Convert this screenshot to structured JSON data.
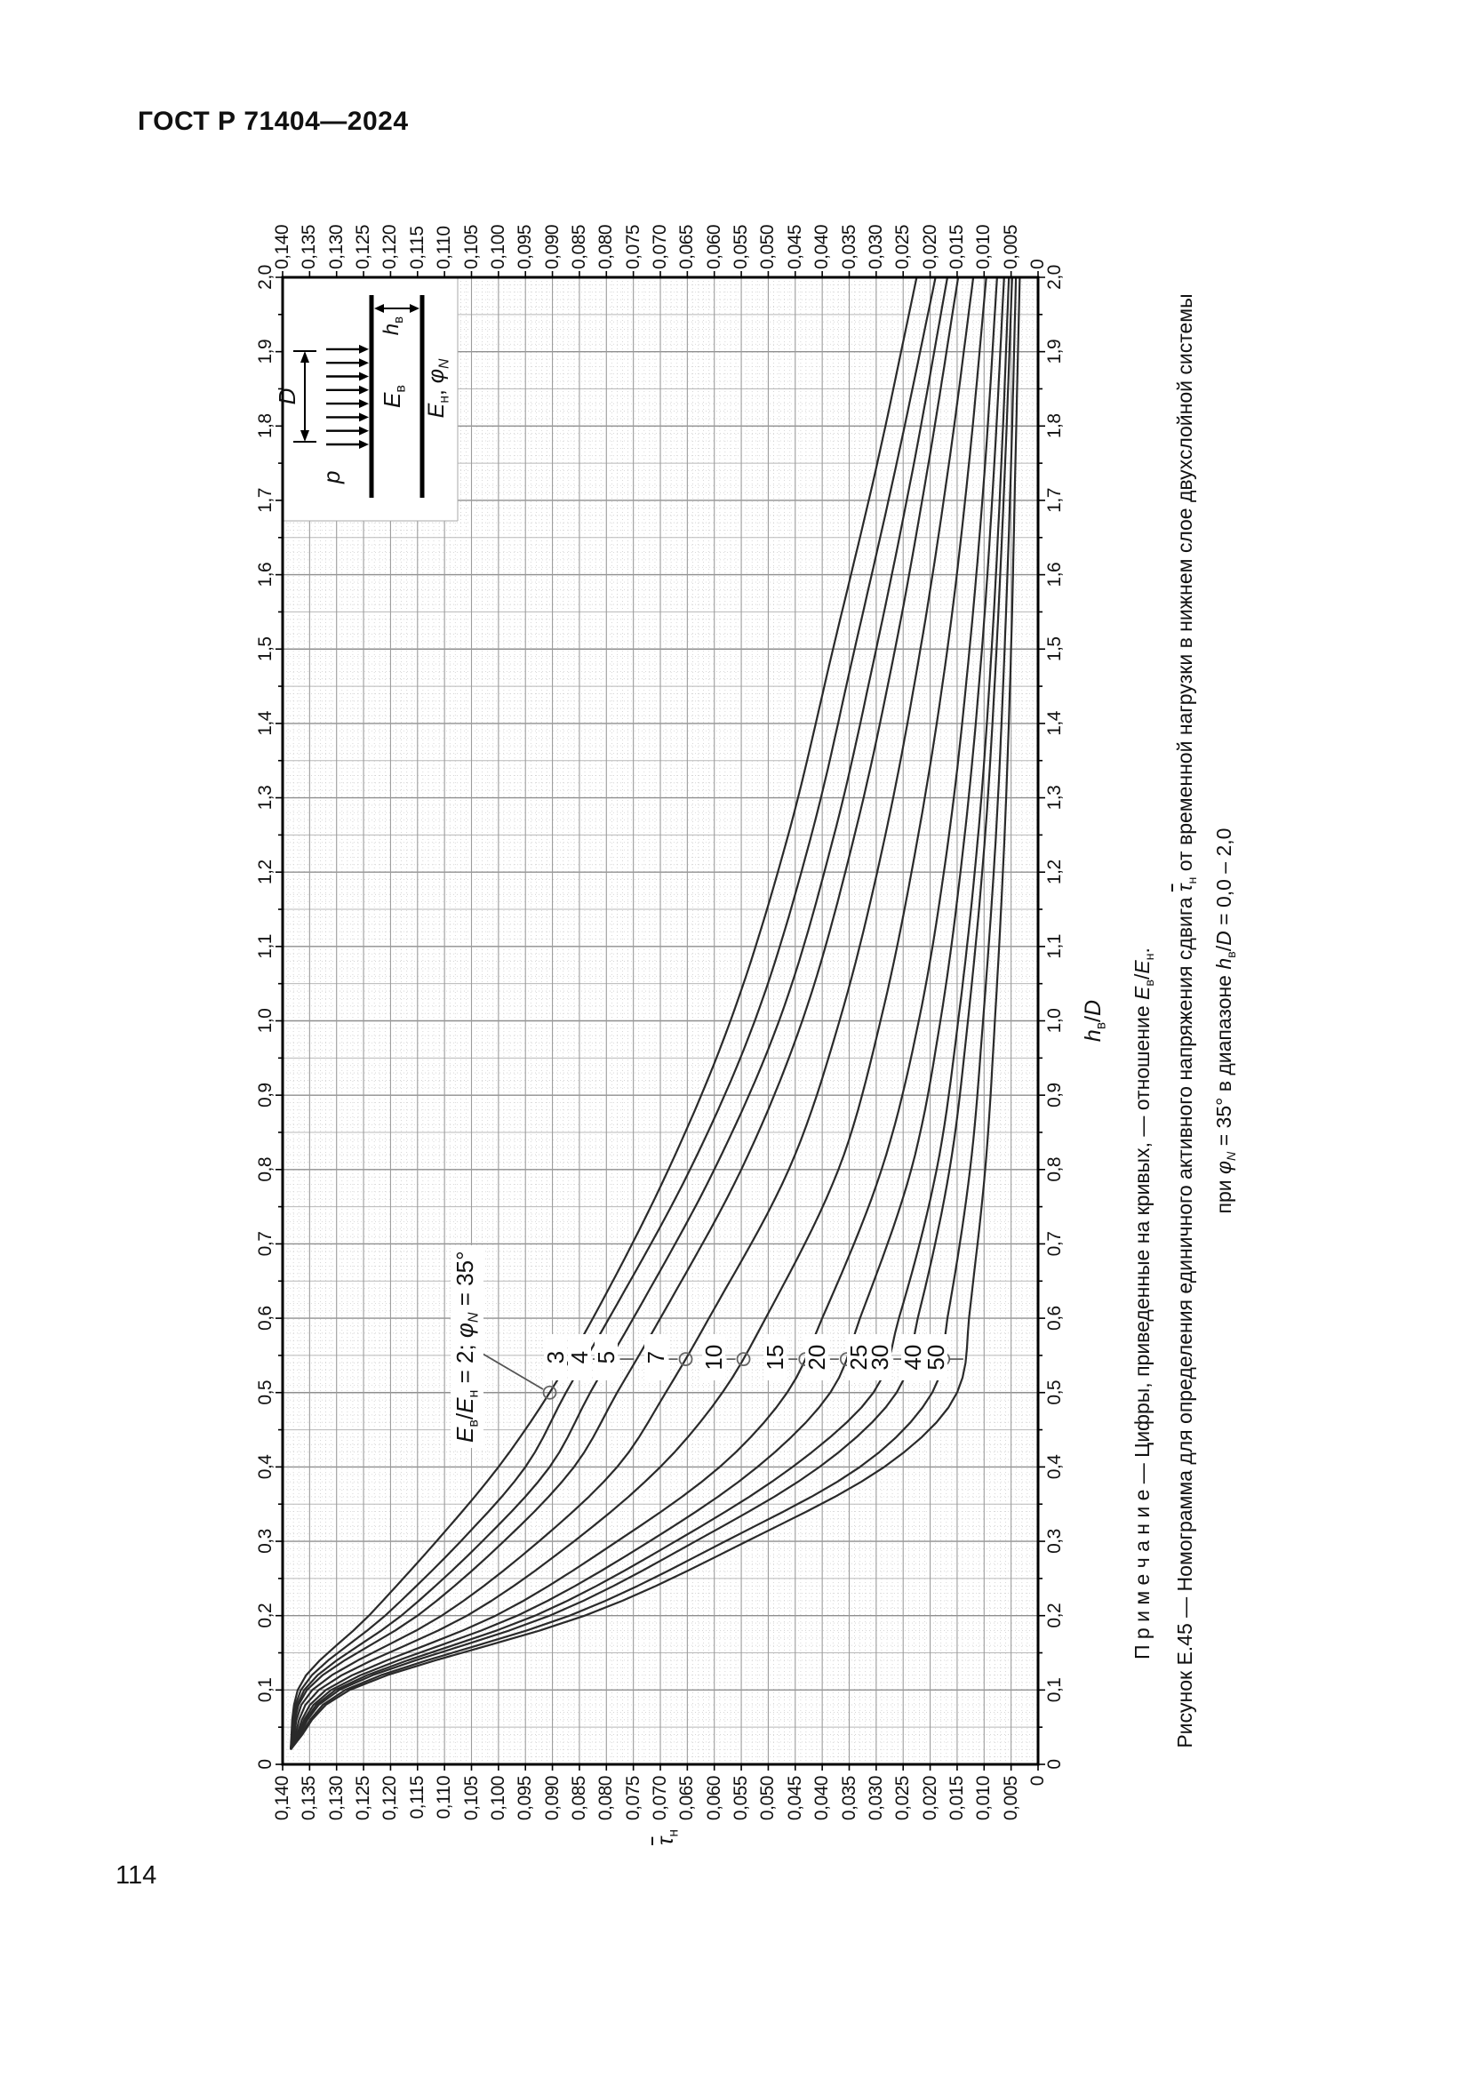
{
  "page": {
    "header": "ГОСТ Р 71404—2024",
    "page_number": "114"
  },
  "chart_data": {
    "type": "line",
    "xlabel_runs": [
      {
        "t": "h",
        "i": 1
      },
      {
        "t": "в",
        "sub": 1
      },
      {
        "t": "/"
      },
      {
        "t": "D",
        "i": 1
      }
    ],
    "ylabel_runs": [
      {
        "t": "τ",
        "i": 1,
        "ol": 1
      },
      {
        "t": "н",
        "sub": 1
      }
    ],
    "xlim": [
      0,
      2.0
    ],
    "ylim": [
      0,
      0.14
    ],
    "x_step_major": 0.1,
    "y_step_major": 0.005,
    "grid": "on",
    "x_ticks": [
      "0",
      "0,1",
      "0,2",
      "0,3",
      "0,4",
      "0,5",
      "0,6",
      "0,7",
      "0,8",
      "0,9",
      "1,0",
      "1,1",
      "1,2",
      "1,3",
      "1,4",
      "1,5",
      "1,6",
      "1,7",
      "1,8",
      "1,9",
      "2,0"
    ],
    "y_ticks": [
      "0,140",
      "0,135",
      "0,130",
      "0,125",
      "0,120",
      "0,115",
      "0,110",
      "0,105",
      "0,100",
      "0,095",
      "0,090",
      "0,085",
      "0,080",
      "0,075",
      "0,070",
      "0,065",
      "0,060",
      "0,055",
      "0,050",
      "0,045",
      "0,040",
      "0,035",
      "0,030",
      "0,025",
      "0,020",
      "0,015",
      "0,010",
      "0,005",
      "0"
    ],
    "note_runs": [
      {
        "t": "П р и м е ч а н и е — Цифры, приведенные на кривых, — отношение "
      },
      {
        "t": "E",
        "i": 1
      },
      {
        "t": "в",
        "sub": 1
      },
      {
        "t": "/"
      },
      {
        "t": "E",
        "i": 1
      },
      {
        "t": "н",
        "sub": 1
      },
      {
        "t": "."
      }
    ],
    "caption_runs_1": [
      {
        "t": "Рисунок Е.45 — Номограмма для определения единичного активного напряжения сдвига "
      },
      {
        "t": "τ",
        "i": 1,
        "ol": 1
      },
      {
        "t": "н",
        "sub": 1
      },
      {
        "t": " от временной нагрузки в нижнем слое двухслойной системы"
      }
    ],
    "caption_runs_2": [
      {
        "t": "при "
      },
      {
        "t": "φ",
        "i": 1
      },
      {
        "t": "N",
        "sub": 1,
        "i": 1
      },
      {
        "t": " = 35° в диапазоне "
      },
      {
        "t": "h",
        "i": 1
      },
      {
        "t": "в",
        "sub": 1
      },
      {
        "t": "/"
      },
      {
        "t": "D",
        "i": 1
      },
      {
        "t": " = 0,0 – 2,0"
      }
    ],
    "annotation": {
      "runs": [
        {
          "t": "E",
          "i": 1
        },
        {
          "t": "в",
          "sub": 1
        },
        {
          "t": "/"
        },
        {
          "t": "E",
          "i": 1
        },
        {
          "t": "н",
          "sub": 1
        },
        {
          "t": " = 2; "
        },
        {
          "t": "φ",
          "i": 1
        },
        {
          "t": "N",
          "sub": 1,
          "i": 1
        },
        {
          "t": " = 35°"
        }
      ],
      "points_to_ratio": "2"
    },
    "curve_label_h": 0.545,
    "series": [
      {
        "ratio": "2",
        "labeled": false,
        "marker": "circle",
        "marker_h": 0.5,
        "points": [
          [
            0.02,
            0.1385
          ],
          [
            0.1,
            0.1372
          ],
          [
            0.2,
            0.124
          ],
          [
            0.3,
            0.1115
          ],
          [
            0.4,
            0.1
          ],
          [
            0.5,
            0.0905
          ],
          [
            0.6,
            0.0825
          ],
          [
            0.8,
            0.0685
          ],
          [
            1,
            0.057
          ],
          [
            1.25,
            0.0463
          ],
          [
            1.5,
            0.038
          ],
          [
            1.75,
            0.0298
          ],
          [
            2,
            0.0225
          ]
        ]
      },
      {
        "ratio": "3",
        "labeled": true,
        "marker": "dash",
        "points": [
          [
            0.02,
            0.1385
          ],
          [
            0.1,
            0.1366
          ],
          [
            0.2,
            0.121
          ],
          [
            0.3,
            0.107
          ],
          [
            0.4,
            0.095
          ],
          [
            0.5,
            0.0875
          ],
          [
            0.6,
            0.0795
          ],
          [
            0.8,
            0.0645
          ],
          [
            1,
            0.0525
          ],
          [
            1.25,
            0.042
          ],
          [
            1.5,
            0.034
          ],
          [
            1.75,
            0.0262
          ],
          [
            2,
            0.019
          ]
        ]
      },
      {
        "ratio": "4",
        "labeled": true,
        "marker": "dash",
        "points": [
          [
            0.02,
            0.1385
          ],
          [
            0.1,
            0.136
          ],
          [
            0.2,
            0.118
          ],
          [
            0.3,
            0.103
          ],
          [
            0.4,
            0.0905
          ],
          [
            0.5,
            0.083
          ],
          [
            0.6,
            0.075
          ],
          [
            0.8,
            0.06
          ],
          [
            1,
            0.048
          ],
          [
            1.25,
            0.0378
          ],
          [
            1.5,
            0.03
          ],
          [
            1.75,
            0.023
          ],
          [
            2,
            0.0168
          ]
        ]
      },
      {
        "ratio": "5",
        "labeled": true,
        "marker": "dash",
        "points": [
          [
            0.02,
            0.1385
          ],
          [
            0.1,
            0.1355
          ],
          [
            0.2,
            0.115
          ],
          [
            0.3,
            0.099
          ],
          [
            0.4,
            0.086
          ],
          [
            0.5,
            0.078
          ],
          [
            0.6,
            0.07
          ],
          [
            0.8,
            0.055
          ],
          [
            1,
            0.0437
          ],
          [
            1.25,
            0.034
          ],
          [
            1.5,
            0.0265
          ],
          [
            1.75,
            0.0203
          ],
          [
            2,
            0.0148
          ]
        ]
      },
      {
        "ratio": "7",
        "labeled": true,
        "marker": "circle",
        "points": [
          [
            0.02,
            0.1385
          ],
          [
            0.1,
            0.1345
          ],
          [
            0.2,
            0.1105
          ],
          [
            0.3,
            0.0925
          ],
          [
            0.4,
            0.078
          ],
          [
            0.5,
            0.069
          ],
          [
            0.6,
            0.061
          ],
          [
            0.8,
            0.0462
          ],
          [
            1,
            0.0368
          ],
          [
            1.25,
            0.0283
          ],
          [
            1.5,
            0.0218
          ],
          [
            1.75,
            0.0165
          ],
          [
            2,
            0.012
          ]
        ]
      },
      {
        "ratio": "10",
        "labeled": true,
        "marker": "circle",
        "points": [
          [
            0.02,
            0.1385
          ],
          [
            0.1,
            0.1333
          ],
          [
            0.2,
            0.1058
          ],
          [
            0.3,
            0.086
          ],
          [
            0.4,
            0.07
          ],
          [
            0.5,
            0.0585
          ],
          [
            0.6,
            0.0505
          ],
          [
            0.8,
            0.037
          ],
          [
            1,
            0.0292
          ],
          [
            1.25,
            0.0222
          ],
          [
            1.5,
            0.0168
          ],
          [
            1.75,
            0.0128
          ],
          [
            2,
            0.0096
          ]
        ]
      },
      {
        "ratio": "15",
        "labeled": true,
        "marker": "circle",
        "points": [
          [
            0.02,
            0.1385
          ],
          [
            0.1,
            0.132
          ],
          [
            0.2,
            0.1005
          ],
          [
            0.3,
            0.078
          ],
          [
            0.4,
            0.059
          ],
          [
            0.5,
            0.0465
          ],
          [
            0.6,
            0.04
          ],
          [
            0.8,
            0.029
          ],
          [
            1,
            0.0221
          ],
          [
            1.25,
            0.0165
          ],
          [
            1.5,
            0.0127
          ],
          [
            1.75,
            0.0098
          ],
          [
            2,
            0.0076
          ]
        ]
      },
      {
        "ratio": "20",
        "labeled": true,
        "marker": "circle",
        "points": [
          [
            0.02,
            0.1385
          ],
          [
            0.1,
            0.131
          ],
          [
            0.2,
            0.0965
          ],
          [
            0.3,
            0.072
          ],
          [
            0.4,
            0.052
          ],
          [
            0.5,
            0.0385
          ],
          [
            0.6,
            0.033
          ],
          [
            0.8,
            0.0235
          ],
          [
            1,
            0.0181
          ],
          [
            1.25,
            0.0136
          ],
          [
            1.5,
            0.0104
          ],
          [
            1.75,
            0.0081
          ],
          [
            2,
            0.0063
          ]
        ]
      },
      {
        "ratio": "25",
        "labeled": true,
        "marker": "dash",
        "points": [
          [
            0.02,
            0.1385
          ],
          [
            0.1,
            0.1302
          ],
          [
            0.2,
            0.0932
          ],
          [
            0.3,
            0.0672
          ],
          [
            0.4,
            0.0455
          ],
          [
            0.5,
            0.0305
          ],
          [
            0.6,
            0.0258
          ],
          [
            0.8,
            0.0188
          ],
          [
            1,
            0.0148
          ],
          [
            1.25,
            0.0111
          ],
          [
            1.5,
            0.0086
          ],
          [
            1.75,
            0.0068
          ],
          [
            2,
            0.0054
          ]
        ]
      },
      {
        "ratio": "30",
        "labeled": true,
        "marker": "dash",
        "points": [
          [
            0.02,
            0.1385
          ],
          [
            0.1,
            0.1295
          ],
          [
            0.2,
            0.0905
          ],
          [
            0.3,
            0.0635
          ],
          [
            0.4,
            0.0405
          ],
          [
            0.5,
            0.0262
          ],
          [
            0.6,
            0.0223
          ],
          [
            0.8,
            0.0164
          ],
          [
            1,
            0.013
          ],
          [
            1.25,
            0.0098
          ],
          [
            1.5,
            0.0077
          ],
          [
            1.75,
            0.0061
          ],
          [
            2,
            0.0048
          ]
        ]
      },
      {
        "ratio": "40",
        "labeled": true,
        "marker": "circle",
        "points": [
          [
            0.02,
            0.1385
          ],
          [
            0.1,
            0.1284
          ],
          [
            0.2,
            0.0868
          ],
          [
            0.3,
            0.058
          ],
          [
            0.4,
            0.033
          ],
          [
            0.5,
            0.0196
          ],
          [
            0.6,
            0.0168
          ],
          [
            0.8,
            0.0126
          ],
          [
            1,
            0.0102
          ],
          [
            1.25,
            0.0078
          ],
          [
            1.5,
            0.0062
          ],
          [
            1.75,
            0.005
          ],
          [
            2,
            0.0041
          ]
        ]
      },
      {
        "ratio": "50",
        "labeled": true,
        "marker": "dash",
        "points": [
          [
            0.02,
            0.1385
          ],
          [
            0.1,
            0.1276
          ],
          [
            0.2,
            0.084
          ],
          [
            0.3,
            0.054
          ],
          [
            0.4,
            0.0285
          ],
          [
            0.5,
            0.015
          ],
          [
            0.6,
            0.0128
          ],
          [
            0.8,
            0.0098
          ],
          [
            1,
            0.008
          ],
          [
            1.25,
            0.0062
          ],
          [
            1.5,
            0.005
          ],
          [
            1.75,
            0.0042
          ],
          [
            2,
            0.0034
          ]
        ]
      }
    ],
    "inset": {
      "D_runs": [
        {
          "t": "D",
          "i": 1
        }
      ],
      "p_runs": [
        {
          "t": "p",
          "i": 1
        }
      ],
      "Eb_runs": [
        {
          "t": "E",
          "i": 1
        },
        {
          "t": "в",
          "sub": 1
        }
      ],
      "En_runs": [
        {
          "t": "E",
          "i": 1
        },
        {
          "t": "н",
          "sub": 1
        },
        {
          "t": ", "
        },
        {
          "t": "φ",
          "i": 1
        },
        {
          "t": "N",
          "sub": 1,
          "i": 1
        }
      ],
      "hb_runs": [
        {
          "t": "h",
          "i": 1
        },
        {
          "t": "в",
          "sub": 1
        }
      ]
    }
  }
}
